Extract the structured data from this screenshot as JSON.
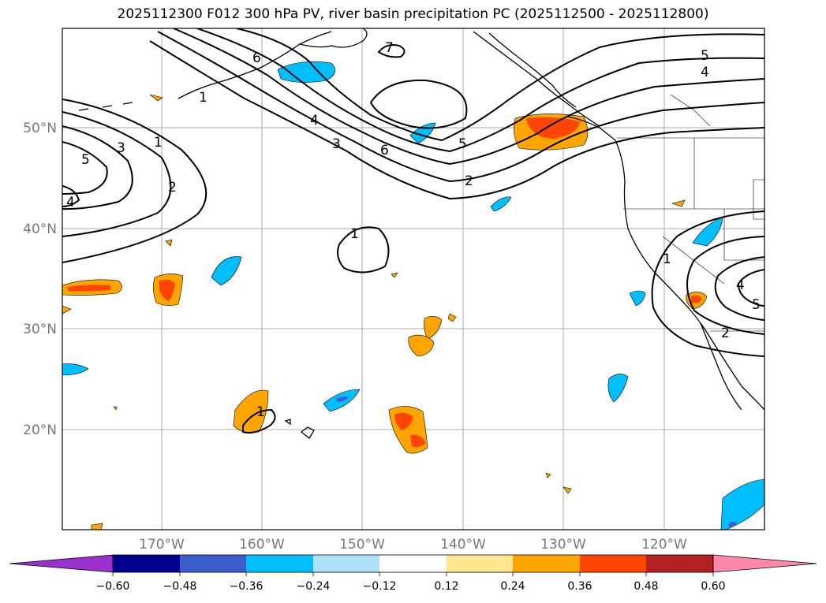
{
  "title": "2025112300 F012 300 hPa PV, river basin precipitation PC (2025112500 - 2025112800)",
  "lat_labels": [
    "50°N",
    "40°N",
    "30°N",
    "20°N"
  ],
  "lon_labels": [
    "170°W",
    "160°W",
    "150°W",
    "140°W",
    "130°W",
    "120°W"
  ],
  "colorbar": {
    "tick_labels": [
      "−0.60",
      "−0.48",
      "−0.36",
      "−0.24",
      "−0.12",
      "0.12",
      "0.24",
      "0.36",
      "0.48",
      "0.60"
    ],
    "colors": [
      "#9b30d0",
      "#000090",
      "#3a5fcd",
      "#00bfff",
      "#aee2fa",
      "#ffffff",
      "#ffe990",
      "#ffa500",
      "#ff4500",
      "#b22222",
      "#ff88aa",
      "#ff88aa"
    ]
  },
  "contour_labels": {
    "a": "1",
    "b": "2",
    "c": "3",
    "d": "4",
    "e": "5",
    "f": "6",
    "g": "7",
    "h": "4",
    "i": "3",
    "j": "6",
    "k": "5",
    "l": "2",
    "m": "1",
    "n": "5",
    "o": "4",
    "p": "1",
    "q": "4",
    "r": "5",
    "s": "2",
    "t": "1",
    "u": "4",
    "v": "5"
  }
}
